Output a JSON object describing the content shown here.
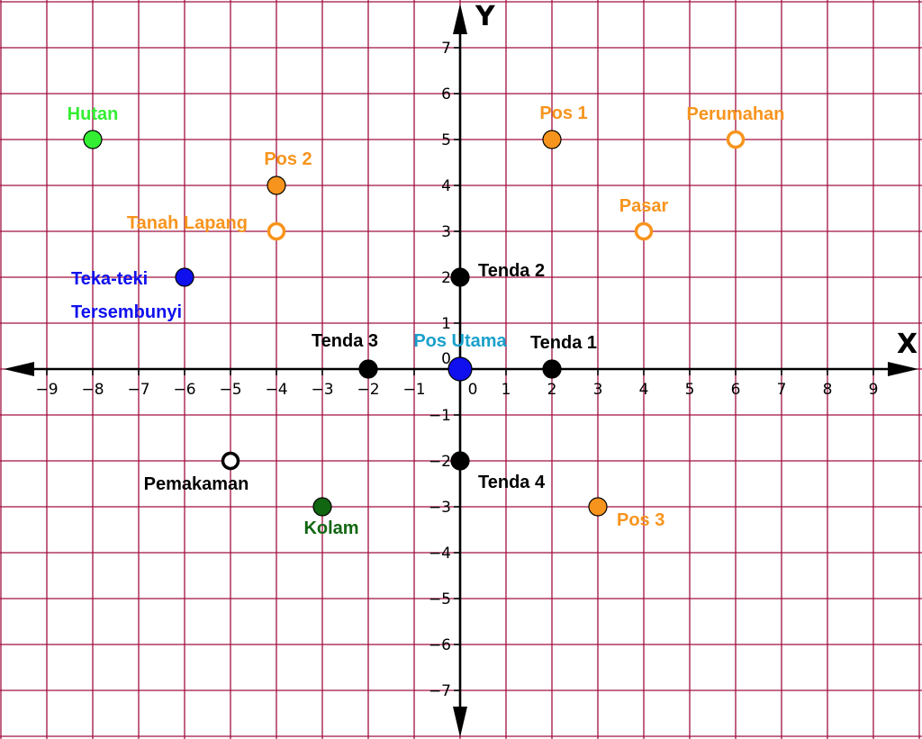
{
  "chart_data": {
    "type": "scatter",
    "title": "",
    "xlabel": "X",
    "ylabel": "Y",
    "xlim": [
      -10,
      10
    ],
    "ylim": [
      -8,
      8
    ],
    "grid": true,
    "x_ticks": [
      -9,
      -8,
      -7,
      -6,
      -5,
      -4,
      -3,
      -2,
      -1,
      0,
      1,
      2,
      3,
      4,
      5,
      6,
      7,
      8,
      9
    ],
    "y_ticks": [
      -7,
      -6,
      -5,
      -4,
      -3,
      -2,
      -1,
      1,
      2,
      3,
      4,
      5,
      6,
      7
    ],
    "origin_label": "0",
    "colors": {
      "grid": "#a01040",
      "axis": "#000000",
      "orange": "#f7941d",
      "black": "#000000",
      "blue": "#1010ee",
      "green": "#33ee33",
      "dark_green": "#116611",
      "cyan_label": "#1aa0cc"
    },
    "points": [
      {
        "name": "hutan",
        "label": [
          "Hutan"
        ],
        "x": -8,
        "y": 5,
        "fill": "#33ee33",
        "hollow": false,
        "label_color": "#33ee33",
        "anchor": "above"
      },
      {
        "name": "pos-2",
        "label": [
          "Pos 2"
        ],
        "x": -4,
        "y": 4,
        "fill": "#f7941d",
        "hollow": false,
        "label_color": "#f7941d",
        "anchor": "above-right"
      },
      {
        "name": "tanah-lapang",
        "label": [
          "Tanah Lapang"
        ],
        "x": -4,
        "y": 3,
        "fill": "#f7941d",
        "hollow": true,
        "label_color": "#f7941d",
        "anchor": "left-up"
      },
      {
        "name": "teka-teki-tersembunyi",
        "label": [
          "Teka-teki",
          "Tersembunyi"
        ],
        "x": -6,
        "y": 2,
        "fill": "#1010ee",
        "hollow": false,
        "label_color": "#1010ee",
        "anchor": "left-two-line"
      },
      {
        "name": "pos-1",
        "label": [
          "Pos 1"
        ],
        "x": 2,
        "y": 5,
        "fill": "#f7941d",
        "hollow": false,
        "label_color": "#f7941d",
        "anchor": "above-right"
      },
      {
        "name": "perumahan",
        "label": [
          "Perumahan"
        ],
        "x": 6,
        "y": 5,
        "fill": "#f7941d",
        "hollow": true,
        "label_color": "#f7941d",
        "anchor": "above"
      },
      {
        "name": "pasar",
        "label": [
          "Pasar"
        ],
        "x": 4,
        "y": 3,
        "fill": "#f7941d",
        "hollow": true,
        "label_color": "#f7941d",
        "anchor": "above"
      },
      {
        "name": "tenda-2",
        "label": [
          "Tenda 2"
        ],
        "x": 0,
        "y": 2,
        "fill": "#000000",
        "hollow": false,
        "label_color": "#000000",
        "anchor": "right-up"
      },
      {
        "name": "tenda-3",
        "label": [
          "Tenda 3"
        ],
        "x": -2,
        "y": 0,
        "fill": "#000000",
        "hollow": false,
        "label_color": "#000000",
        "anchor": "above-left"
      },
      {
        "name": "pos-utama",
        "label": [
          "Pos Utama"
        ],
        "x": 0,
        "y": 0,
        "fill": "#1010ee",
        "hollow": false,
        "big": true,
        "label_color": "#1aa0cc",
        "anchor": "above"
      },
      {
        "name": "tenda-1",
        "label": [
          "Tenda 1"
        ],
        "x": 2,
        "y": 0,
        "fill": "#000000",
        "hollow": false,
        "label_color": "#000000",
        "anchor": "above-right"
      },
      {
        "name": "tenda-4",
        "label": [
          "Tenda 4"
        ],
        "x": 0,
        "y": -2,
        "fill": "#000000",
        "hollow": false,
        "label_color": "#000000",
        "anchor": "below-right"
      },
      {
        "name": "pemakaman",
        "label": [
          "Pemakaman"
        ],
        "x": -5,
        "y": -2,
        "fill": "#000000",
        "hollow": true,
        "label_color": "#000000",
        "anchor": "below"
      },
      {
        "name": "kolam",
        "label": [
          "Kolam"
        ],
        "x": -3,
        "y": -3,
        "fill": "#116611",
        "hollow": false,
        "label_color": "#116611",
        "anchor": "below-right"
      },
      {
        "name": "pos-3",
        "label": [
          "Pos 3"
        ],
        "x": 3,
        "y": -3,
        "fill": "#f7941d",
        "hollow": false,
        "label_color": "#f7941d",
        "anchor": "right-down"
      }
    ]
  }
}
